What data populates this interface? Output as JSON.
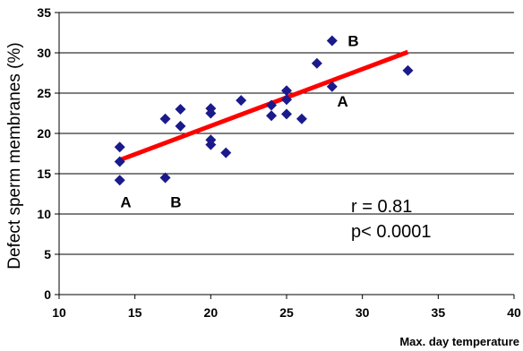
{
  "chart_data": {
    "type": "scatter",
    "xlabel": "Max. day temperature",
    "ylabel": "Defect sperm membranes (%)",
    "xlim": [
      10,
      40
    ],
    "ylim": [
      0,
      35
    ],
    "xticks": [
      10,
      15,
      20,
      25,
      30,
      35,
      40
    ],
    "yticks": [
      0,
      5,
      10,
      15,
      20,
      25,
      30,
      35
    ],
    "grid": "horizontal",
    "marker_color": "#1a1a8c",
    "trendline_color": "#ff0000",
    "points": [
      {
        "x": 14,
        "y": 18.3
      },
      {
        "x": 14,
        "y": 16.5
      },
      {
        "x": 14,
        "y": 14.2
      },
      {
        "x": 17,
        "y": 21.8
      },
      {
        "x": 17,
        "y": 14.5
      },
      {
        "x": 18,
        "y": 23.0
      },
      {
        "x": 18,
        "y": 20.9
      },
      {
        "x": 20,
        "y": 23.1
      },
      {
        "x": 20,
        "y": 22.5
      },
      {
        "x": 20,
        "y": 19.2
      },
      {
        "x": 20,
        "y": 18.6
      },
      {
        "x": 21,
        "y": 17.6
      },
      {
        "x": 22,
        "y": 24.1
      },
      {
        "x": 24,
        "y": 23.5
      },
      {
        "x": 24,
        "y": 22.2
      },
      {
        "x": 25,
        "y": 25.3
      },
      {
        "x": 25,
        "y": 24.2
      },
      {
        "x": 25,
        "y": 22.4
      },
      {
        "x": 26,
        "y": 21.8
      },
      {
        "x": 27,
        "y": 28.7
      },
      {
        "x": 28,
        "y": 31.5
      },
      {
        "x": 28,
        "y": 25.8
      },
      {
        "x": 33,
        "y": 27.8
      }
    ],
    "trendline": {
      "x": [
        14,
        33
      ],
      "y": [
        16.7,
        30.1
      ]
    },
    "point_labels": [
      {
        "text": "A",
        "x": 14.4,
        "y": 11.5
      },
      {
        "text": "B",
        "x": 17.7,
        "y": 11.5
      },
      {
        "text": "B",
        "x": 29.4,
        "y": 31.5
      },
      {
        "text": "A",
        "x": 28.7,
        "y": 24.0
      }
    ],
    "annotations": [
      "r = 0.81",
      "p< 0.0001"
    ]
  }
}
